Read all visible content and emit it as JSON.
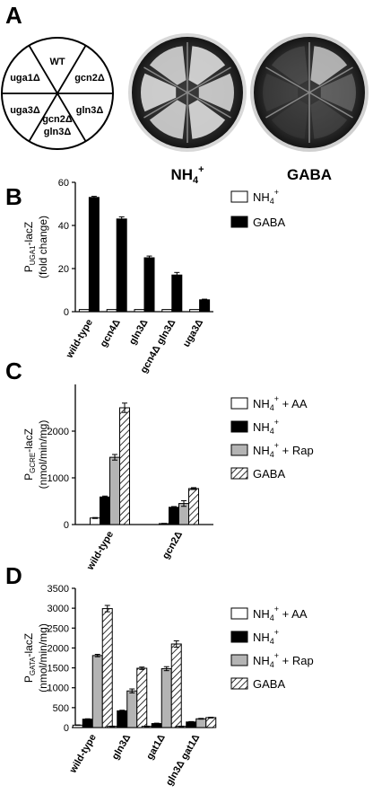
{
  "panel_a": {
    "letter": "A",
    "wheel_sectors": [
      "WT",
      "gcn2Δ",
      "gln3Δ",
      "gcn2Δ",
      "gln3Δ",
      "uga3Δ",
      "uga1Δ"
    ],
    "plate_labels": [
      "NH",
      "4",
      "+",
      "GABA"
    ]
  },
  "chart_data": [
    {
      "panel": "B",
      "type": "bar",
      "ylabel_main": "P",
      "ylabel_sub": "UGA1",
      "ylabel_rest": "-lacZ",
      "ylabel2": "(fold change)",
      "categories": [
        "wild-type",
        "gcn4Δ",
        "gln3Δ",
        "gcn4Δ gln3Δ",
        "uga3Δ"
      ],
      "ylim": [
        0,
        60
      ],
      "yticks": [
        0,
        20,
        40,
        60
      ],
      "legend": [
        {
          "base": "NH",
          "sub": "4",
          "sup": "+",
          "rest": ""
        },
        {
          "base": "GABA",
          "sub": "",
          "sup": "",
          "rest": ""
        }
      ],
      "series": [
        {
          "fill": "white",
          "values": [
            1,
            1,
            1,
            1,
            1
          ],
          "errors": [
            0,
            0,
            0,
            0,
            0
          ]
        },
        {
          "fill": "black",
          "values": [
            53,
            43,
            25,
            17,
            5.5
          ],
          "errors": [
            0.5,
            1,
            0.8,
            1.2,
            0.3
          ]
        }
      ]
    },
    {
      "panel": "C",
      "type": "bar",
      "ylabel_main": "P",
      "ylabel_sub": "GCRE",
      "ylabel_rest": "-lacZ",
      "ylabel2": "(nmol/min/mg)",
      "categories": [
        "wild-type",
        "gcn2Δ"
      ],
      "ylim": [
        0,
        3000
      ],
      "yticks": [
        0,
        1000,
        2000
      ],
      "legend": [
        {
          "base": "NH",
          "sub": "4",
          "sup": "+",
          "rest": " + AA"
        },
        {
          "base": "NH",
          "sub": "4",
          "sup": "+",
          "rest": ""
        },
        {
          "base": "NH",
          "sub": "4",
          "sup": "+",
          "rest": " + Rap"
        },
        {
          "base": "GABA",
          "sub": "",
          "sup": "",
          "rest": ""
        }
      ],
      "series": [
        {
          "fill": "white",
          "values": [
            140,
            20
          ],
          "errors": [
            10,
            5
          ]
        },
        {
          "fill": "black",
          "values": [
            590,
            370
          ],
          "errors": [
            20,
            15
          ]
        },
        {
          "fill": "gray",
          "values": [
            1440,
            450
          ],
          "errors": [
            60,
            60
          ]
        },
        {
          "fill": "hatch",
          "values": [
            2500,
            770
          ],
          "errors": [
            100,
            20
          ]
        }
      ]
    },
    {
      "panel": "D",
      "type": "bar",
      "ylabel_main": "P",
      "ylabel_sub": "GATA",
      "ylabel_rest": "-lacZ",
      "ylabel2": "(nmol/min/mg)",
      "categories": [
        "wild-type",
        "gln3Δ",
        "gat1Δ",
        "gln3Δ gat1Δ"
      ],
      "ylim": [
        0,
        3500
      ],
      "yticks": [
        0,
        500,
        1000,
        1500,
        2000,
        2500,
        3000,
        3500
      ],
      "legend": [
        {
          "base": "NH",
          "sub": "4",
          "sup": "+",
          "rest": " + AA"
        },
        {
          "base": "NH",
          "sub": "4",
          "sup": "+",
          "rest": ""
        },
        {
          "base": "NH",
          "sub": "4",
          "sup": "+",
          "rest": " + Rap"
        },
        {
          "base": "GABA",
          "sub": "",
          "sup": "",
          "rest": ""
        }
      ],
      "series": [
        {
          "fill": "white",
          "values": [
            60,
            30,
            30,
            30
          ],
          "errors": [
            5,
            5,
            5,
            5
          ]
        },
        {
          "fill": "black",
          "values": [
            210,
            420,
            100,
            140
          ],
          "errors": [
            10,
            15,
            10,
            10
          ]
        },
        {
          "fill": "gray",
          "values": [
            1810,
            920,
            1480,
            220
          ],
          "errors": [
            30,
            50,
            50,
            10
          ]
        },
        {
          "fill": "hatch",
          "values": [
            2990,
            1490,
            2100,
            250
          ],
          "errors": [
            80,
            30,
            80,
            10
          ]
        }
      ]
    }
  ],
  "panel_letters": {
    "b": "B",
    "c": "C",
    "d": "D"
  }
}
